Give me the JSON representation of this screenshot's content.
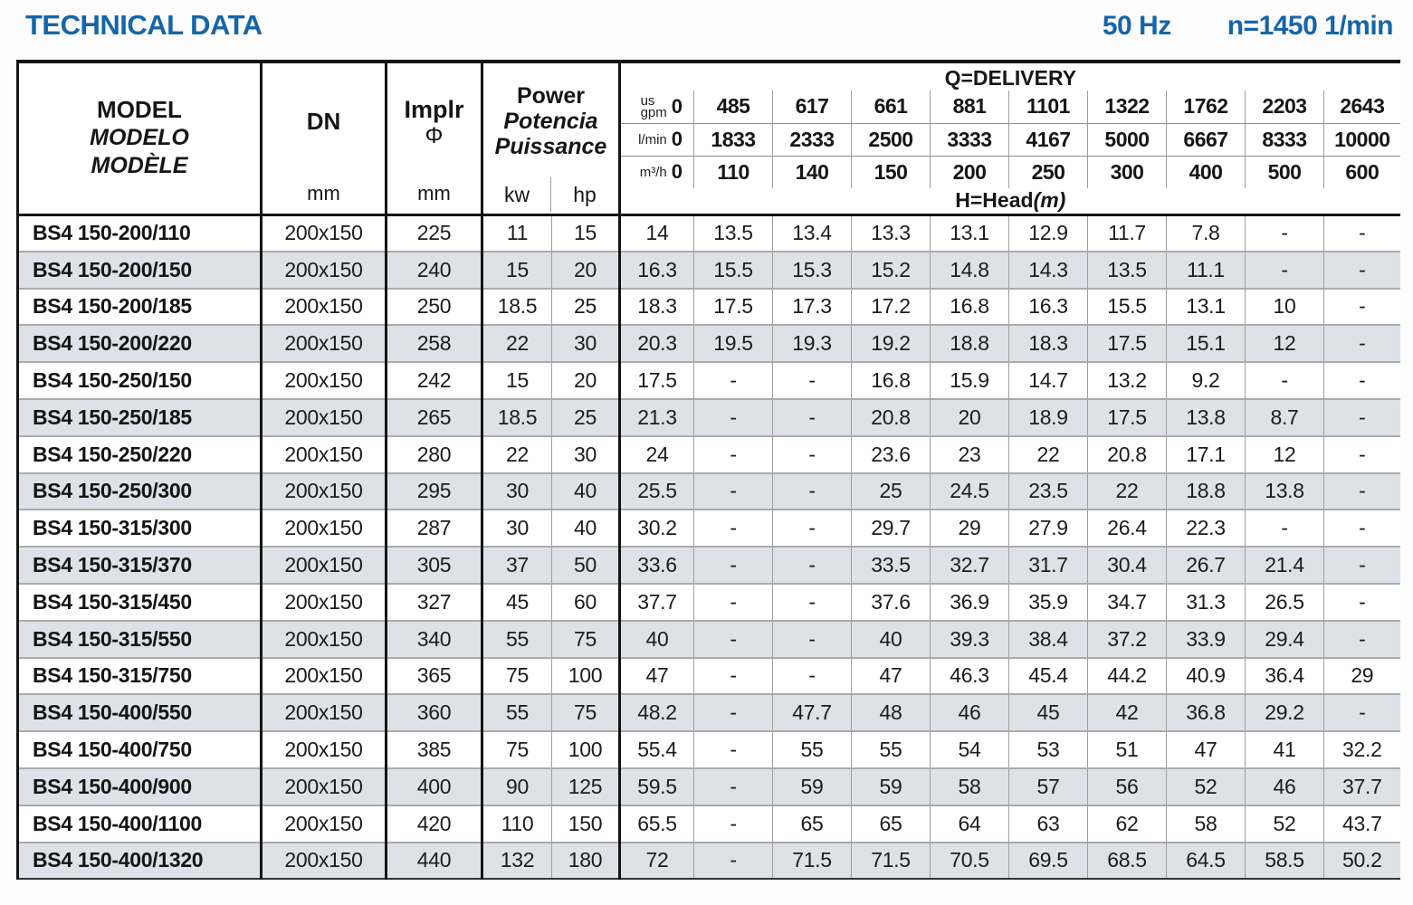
{
  "title": "TECHNICAL DATA",
  "frequency": "50 Hz",
  "speed": "n=1450 1/min",
  "colors": {
    "accent": "#1565a8",
    "stripe": "#dce2e8",
    "grid_dark": "#141414",
    "grid_light": "#9e9e9e"
  },
  "table": {
    "columns": {
      "model": [
        "MODEL",
        "MODELO",
        "MODÈLE"
      ],
      "dn": {
        "label": "DN",
        "unit": "mm"
      },
      "implr": {
        "label": "Implr",
        "symbol": "Φ",
        "unit": "mm"
      },
      "power": {
        "lines": [
          "Power",
          "Potencia",
          "Puissance"
        ],
        "units": [
          "kw",
          "hp"
        ]
      }
    },
    "delivery": {
      "title": "Q=DELIVERY",
      "flow_rows": [
        {
          "unit": "us\ngpm",
          "values": [
            "0",
            "485",
            "617",
            "661",
            "881",
            "1101",
            "1322",
            "1762",
            "2203",
            "2643"
          ]
        },
        {
          "unit": "l/min",
          "values": [
            "0",
            "1833",
            "2333",
            "2500",
            "3333",
            "4167",
            "5000",
            "6667",
            "8333",
            "10000"
          ]
        },
        {
          "unit": "m³/h",
          "values": [
            "0",
            "110",
            "140",
            "150",
            "200",
            "250",
            "300",
            "400",
            "500",
            "600"
          ]
        }
      ],
      "head_label": "H=Head",
      "head_unit": "(m)"
    },
    "rows": [
      {
        "model": "BS4 150-200/110",
        "dn": "200x150",
        "implr": "225",
        "kw": "11",
        "hp": "15",
        "head": [
          "14",
          "13.5",
          "13.4",
          "13.3",
          "13.1",
          "12.9",
          "11.7",
          "7.8",
          "-",
          "-"
        ]
      },
      {
        "model": "BS4 150-200/150",
        "dn": "200x150",
        "implr": "240",
        "kw": "15",
        "hp": "20",
        "head": [
          "16.3",
          "15.5",
          "15.3",
          "15.2",
          "14.8",
          "14.3",
          "13.5",
          "11.1",
          "-",
          "-"
        ]
      },
      {
        "model": "BS4 150-200/185",
        "dn": "200x150",
        "implr": "250",
        "kw": "18.5",
        "hp": "25",
        "head": [
          "18.3",
          "17.5",
          "17.3",
          "17.2",
          "16.8",
          "16.3",
          "15.5",
          "13.1",
          "10",
          "-"
        ]
      },
      {
        "model": "BS4 150-200/220",
        "dn": "200x150",
        "implr": "258",
        "kw": "22",
        "hp": "30",
        "head": [
          "20.3",
          "19.5",
          "19.3",
          "19.2",
          "18.8",
          "18.3",
          "17.5",
          "15.1",
          "12",
          "-"
        ]
      },
      {
        "model": "BS4 150-250/150",
        "dn": "200x150",
        "implr": "242",
        "kw": "15",
        "hp": "20",
        "head": [
          "17.5",
          "-",
          "-",
          "16.8",
          "15.9",
          "14.7",
          "13.2",
          "9.2",
          "-",
          "-"
        ]
      },
      {
        "model": "BS4 150-250/185",
        "dn": "200x150",
        "implr": "265",
        "kw": "18.5",
        "hp": "25",
        "head": [
          "21.3",
          "-",
          "-",
          "20.8",
          "20",
          "18.9",
          "17.5",
          "13.8",
          "8.7",
          "-"
        ]
      },
      {
        "model": "BS4 150-250/220",
        "dn": "200x150",
        "implr": "280",
        "kw": "22",
        "hp": "30",
        "head": [
          "24",
          "-",
          "-",
          "23.6",
          "23",
          "22",
          "20.8",
          "17.1",
          "12",
          "-"
        ]
      },
      {
        "model": "BS4 150-250/300",
        "dn": "200x150",
        "implr": "295",
        "kw": "30",
        "hp": "40",
        "head": [
          "25.5",
          "-",
          "-",
          "25",
          "24.5",
          "23.5",
          "22",
          "18.8",
          "13.8",
          "-"
        ]
      },
      {
        "model": "BS4 150-315/300",
        "dn": "200x150",
        "implr": "287",
        "kw": "30",
        "hp": "40",
        "head": [
          "30.2",
          "-",
          "-",
          "29.7",
          "29",
          "27.9",
          "26.4",
          "22.3",
          "-",
          "-"
        ]
      },
      {
        "model": "BS4 150-315/370",
        "dn": "200x150",
        "implr": "305",
        "kw": "37",
        "hp": "50",
        "head": [
          "33.6",
          "-",
          "-",
          "33.5",
          "32.7",
          "31.7",
          "30.4",
          "26.7",
          "21.4",
          "-"
        ]
      },
      {
        "model": "BS4 150-315/450",
        "dn": "200x150",
        "implr": "327",
        "kw": "45",
        "hp": "60",
        "head": [
          "37.7",
          "-",
          "-",
          "37.6",
          "36.9",
          "35.9",
          "34.7",
          "31.3",
          "26.5",
          "-"
        ]
      },
      {
        "model": "BS4 150-315/550",
        "dn": "200x150",
        "implr": "340",
        "kw": "55",
        "hp": "75",
        "head": [
          "40",
          "-",
          "-",
          "40",
          "39.3",
          "38.4",
          "37.2",
          "33.9",
          "29.4",
          "-"
        ]
      },
      {
        "model": "BS4 150-315/750",
        "dn": "200x150",
        "implr": "365",
        "kw": "75",
        "hp": "100",
        "head": [
          "47",
          "-",
          "-",
          "47",
          "46.3",
          "45.4",
          "44.2",
          "40.9",
          "36.4",
          "29"
        ]
      },
      {
        "model": "BS4 150-400/550",
        "dn": "200x150",
        "implr": "360",
        "kw": "55",
        "hp": "75",
        "head": [
          "48.2",
          "-",
          "47.7",
          "48",
          "46",
          "45",
          "42",
          "36.8",
          "29.2",
          "-"
        ]
      },
      {
        "model": "BS4 150-400/750",
        "dn": "200x150",
        "implr": "385",
        "kw": "75",
        "hp": "100",
        "head": [
          "55.4",
          "-",
          "55",
          "55",
          "54",
          "53",
          "51",
          "47",
          "41",
          "32.2"
        ]
      },
      {
        "model": "BS4 150-400/900",
        "dn": "200x150",
        "implr": "400",
        "kw": "90",
        "hp": "125",
        "head": [
          "59.5",
          "-",
          "59",
          "59",
          "58",
          "57",
          "56",
          "52",
          "46",
          "37.7"
        ]
      },
      {
        "model": "BS4 150-400/1100",
        "dn": "200x150",
        "implr": "420",
        "kw": "110",
        "hp": "150",
        "head": [
          "65.5",
          "-",
          "65",
          "65",
          "64",
          "63",
          "62",
          "58",
          "52",
          "43.7"
        ]
      },
      {
        "model": "BS4 150-400/1320",
        "dn": "200x150",
        "implr": "440",
        "kw": "132",
        "hp": "180",
        "head": [
          "72",
          "-",
          "71.5",
          "71.5",
          "70.5",
          "69.5",
          "68.5",
          "64.5",
          "58.5",
          "50.2"
        ]
      }
    ]
  }
}
